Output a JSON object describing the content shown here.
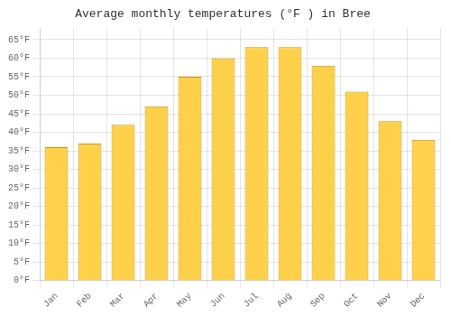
{
  "chart_data": {
    "type": "bar",
    "title": "Average monthly temperatures (°F ) in Bree",
    "categories": [
      "Jan",
      "Feb",
      "Mar",
      "Apr",
      "May",
      "Jun",
      "Jul",
      "Aug",
      "Sep",
      "Oct",
      "Nov",
      "Dec"
    ],
    "values": [
      36,
      37,
      42,
      47,
      55,
      60,
      63,
      63,
      58,
      51,
      43,
      38
    ],
    "color": "#FFD04A",
    "ylim": [
      0,
      68
    ],
    "yticks": [
      {
        "value": 0,
        "label": "0°F"
      },
      {
        "value": 5,
        "label": "5°F"
      },
      {
        "value": 10,
        "label": "10°F"
      },
      {
        "value": 15,
        "label": "15°F"
      },
      {
        "value": 20,
        "label": "20°F"
      },
      {
        "value": 25,
        "label": "25°F"
      },
      {
        "value": 30,
        "label": "30°F"
      },
      {
        "value": 35,
        "label": "35°F"
      },
      {
        "value": 40,
        "label": "40°F"
      },
      {
        "value": 45,
        "label": "45°F"
      },
      {
        "value": 50,
        "label": "50°F"
      },
      {
        "value": 55,
        "label": "55°F"
      },
      {
        "value": 60,
        "label": "60°F"
      },
      {
        "value": 65,
        "label": "65°F"
      }
    ],
    "grid": true
  }
}
